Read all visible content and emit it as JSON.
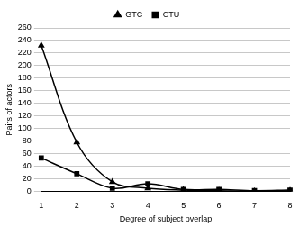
{
  "chart_data": {
    "type": "line",
    "x_label": "Degree of subject overlap",
    "y_label": "Pairs of actors",
    "categories": [
      "1",
      "2",
      "3",
      "4",
      "5",
      "6",
      "7",
      "8"
    ],
    "series": [
      {
        "name": "GTC",
        "color": "#000000",
        "marker": "triangle",
        "values": [
          232,
          78,
          15,
          5,
          2,
          1,
          0,
          1
        ]
      },
      {
        "name": "CTU",
        "color": "#000000",
        "marker": "square",
        "values": [
          53,
          28,
          5,
          12,
          3,
          3,
          1,
          2
        ]
      }
    ],
    "ylim": [
      0,
      260
    ],
    "yticks": [
      0,
      20,
      40,
      60,
      80,
      100,
      120,
      140,
      160,
      180,
      200,
      220,
      240,
      260
    ],
    "grid": true,
    "legend": "top"
  }
}
